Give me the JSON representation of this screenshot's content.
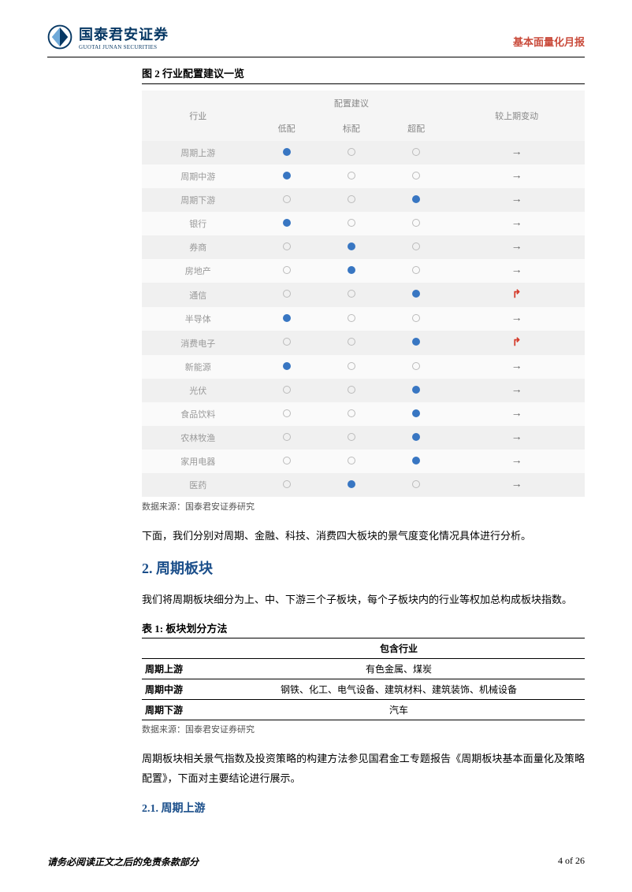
{
  "header": {
    "logo_cn": "国泰君安证券",
    "logo_en": "GUOTAI JUNAN SECURITIES",
    "report_type": "基本面量化月报",
    "logo_color_dark": "#073864",
    "logo_color_light": "#6fa9d8"
  },
  "fig2": {
    "title": "图 2 行业配置建议一览",
    "col_industry": "行业",
    "col_suggestion": "配置建议",
    "col_under": "低配",
    "col_normal": "标配",
    "col_over": "超配",
    "col_change": "较上期变动",
    "dot_color": "#3876c2",
    "bg_odd": "#f0f0f0",
    "bg_even": "#fafafa",
    "rows": [
      {
        "name": "周期上游",
        "low": 1,
        "mid": 0,
        "high": 0,
        "change": "right"
      },
      {
        "name": "周期中游",
        "low": 1,
        "mid": 0,
        "high": 0,
        "change": "right"
      },
      {
        "name": "周期下游",
        "low": 0,
        "mid": 0,
        "high": 1,
        "change": "right"
      },
      {
        "name": "银行",
        "low": 1,
        "mid": 0,
        "high": 0,
        "change": "right"
      },
      {
        "name": "券商",
        "low": 0,
        "mid": 1,
        "high": 0,
        "change": "right"
      },
      {
        "name": "房地产",
        "low": 0,
        "mid": 1,
        "high": 0,
        "change": "right"
      },
      {
        "name": "通信",
        "low": 0,
        "mid": 0,
        "high": 1,
        "change": "up"
      },
      {
        "name": "半导体",
        "low": 1,
        "mid": 0,
        "high": 0,
        "change": "right"
      },
      {
        "name": "消费电子",
        "low": 0,
        "mid": 0,
        "high": 1,
        "change": "up"
      },
      {
        "name": "新能源",
        "low": 1,
        "mid": 0,
        "high": 0,
        "change": "right"
      },
      {
        "name": "光伏",
        "low": 0,
        "mid": 0,
        "high": 1,
        "change": "right"
      },
      {
        "name": "食品饮料",
        "low": 0,
        "mid": 0,
        "high": 1,
        "change": "right"
      },
      {
        "name": "农林牧渔",
        "low": 0,
        "mid": 0,
        "high": 1,
        "change": "right"
      },
      {
        "name": "家用电器",
        "low": 0,
        "mid": 0,
        "high": 1,
        "change": "right"
      },
      {
        "name": "医药",
        "low": 0,
        "mid": 1,
        "high": 0,
        "change": "right"
      }
    ],
    "source": "数据来源：国泰君安证券研究"
  },
  "para1": "下面，我们分别对周期、金融、科技、消费四大板块的景气度变化情况具体进行分析。",
  "section2": {
    "heading": "2.  周期板块",
    "para": "我们将周期板块细分为上、中、下游三个子板块，每个子板块内的行业等权加总构成板块指数。"
  },
  "table1": {
    "title": "表 1:  板块划分方法",
    "col_header": "包含行业",
    "rows": [
      {
        "label": "周期上游",
        "content": "有色金属、煤炭"
      },
      {
        "label": "周期中游",
        "content": "钢铁、化工、电气设备、建筑材料、建筑装饰、机械设备"
      },
      {
        "label": "周期下游",
        "content": "汽车"
      }
    ],
    "source": "数据来源：国泰君安证券研究"
  },
  "para2": "周期板块相关景气指数及投资策略的构建方法参见国君金工专题报告《周期板块基本面量化及策略配置》，下面对主要结论进行展示。",
  "section21": {
    "heading": "2.1.  周期上游"
  },
  "footer": {
    "left": "请务必阅读正文之后的免责条款部分",
    "right": "4 of 26"
  }
}
